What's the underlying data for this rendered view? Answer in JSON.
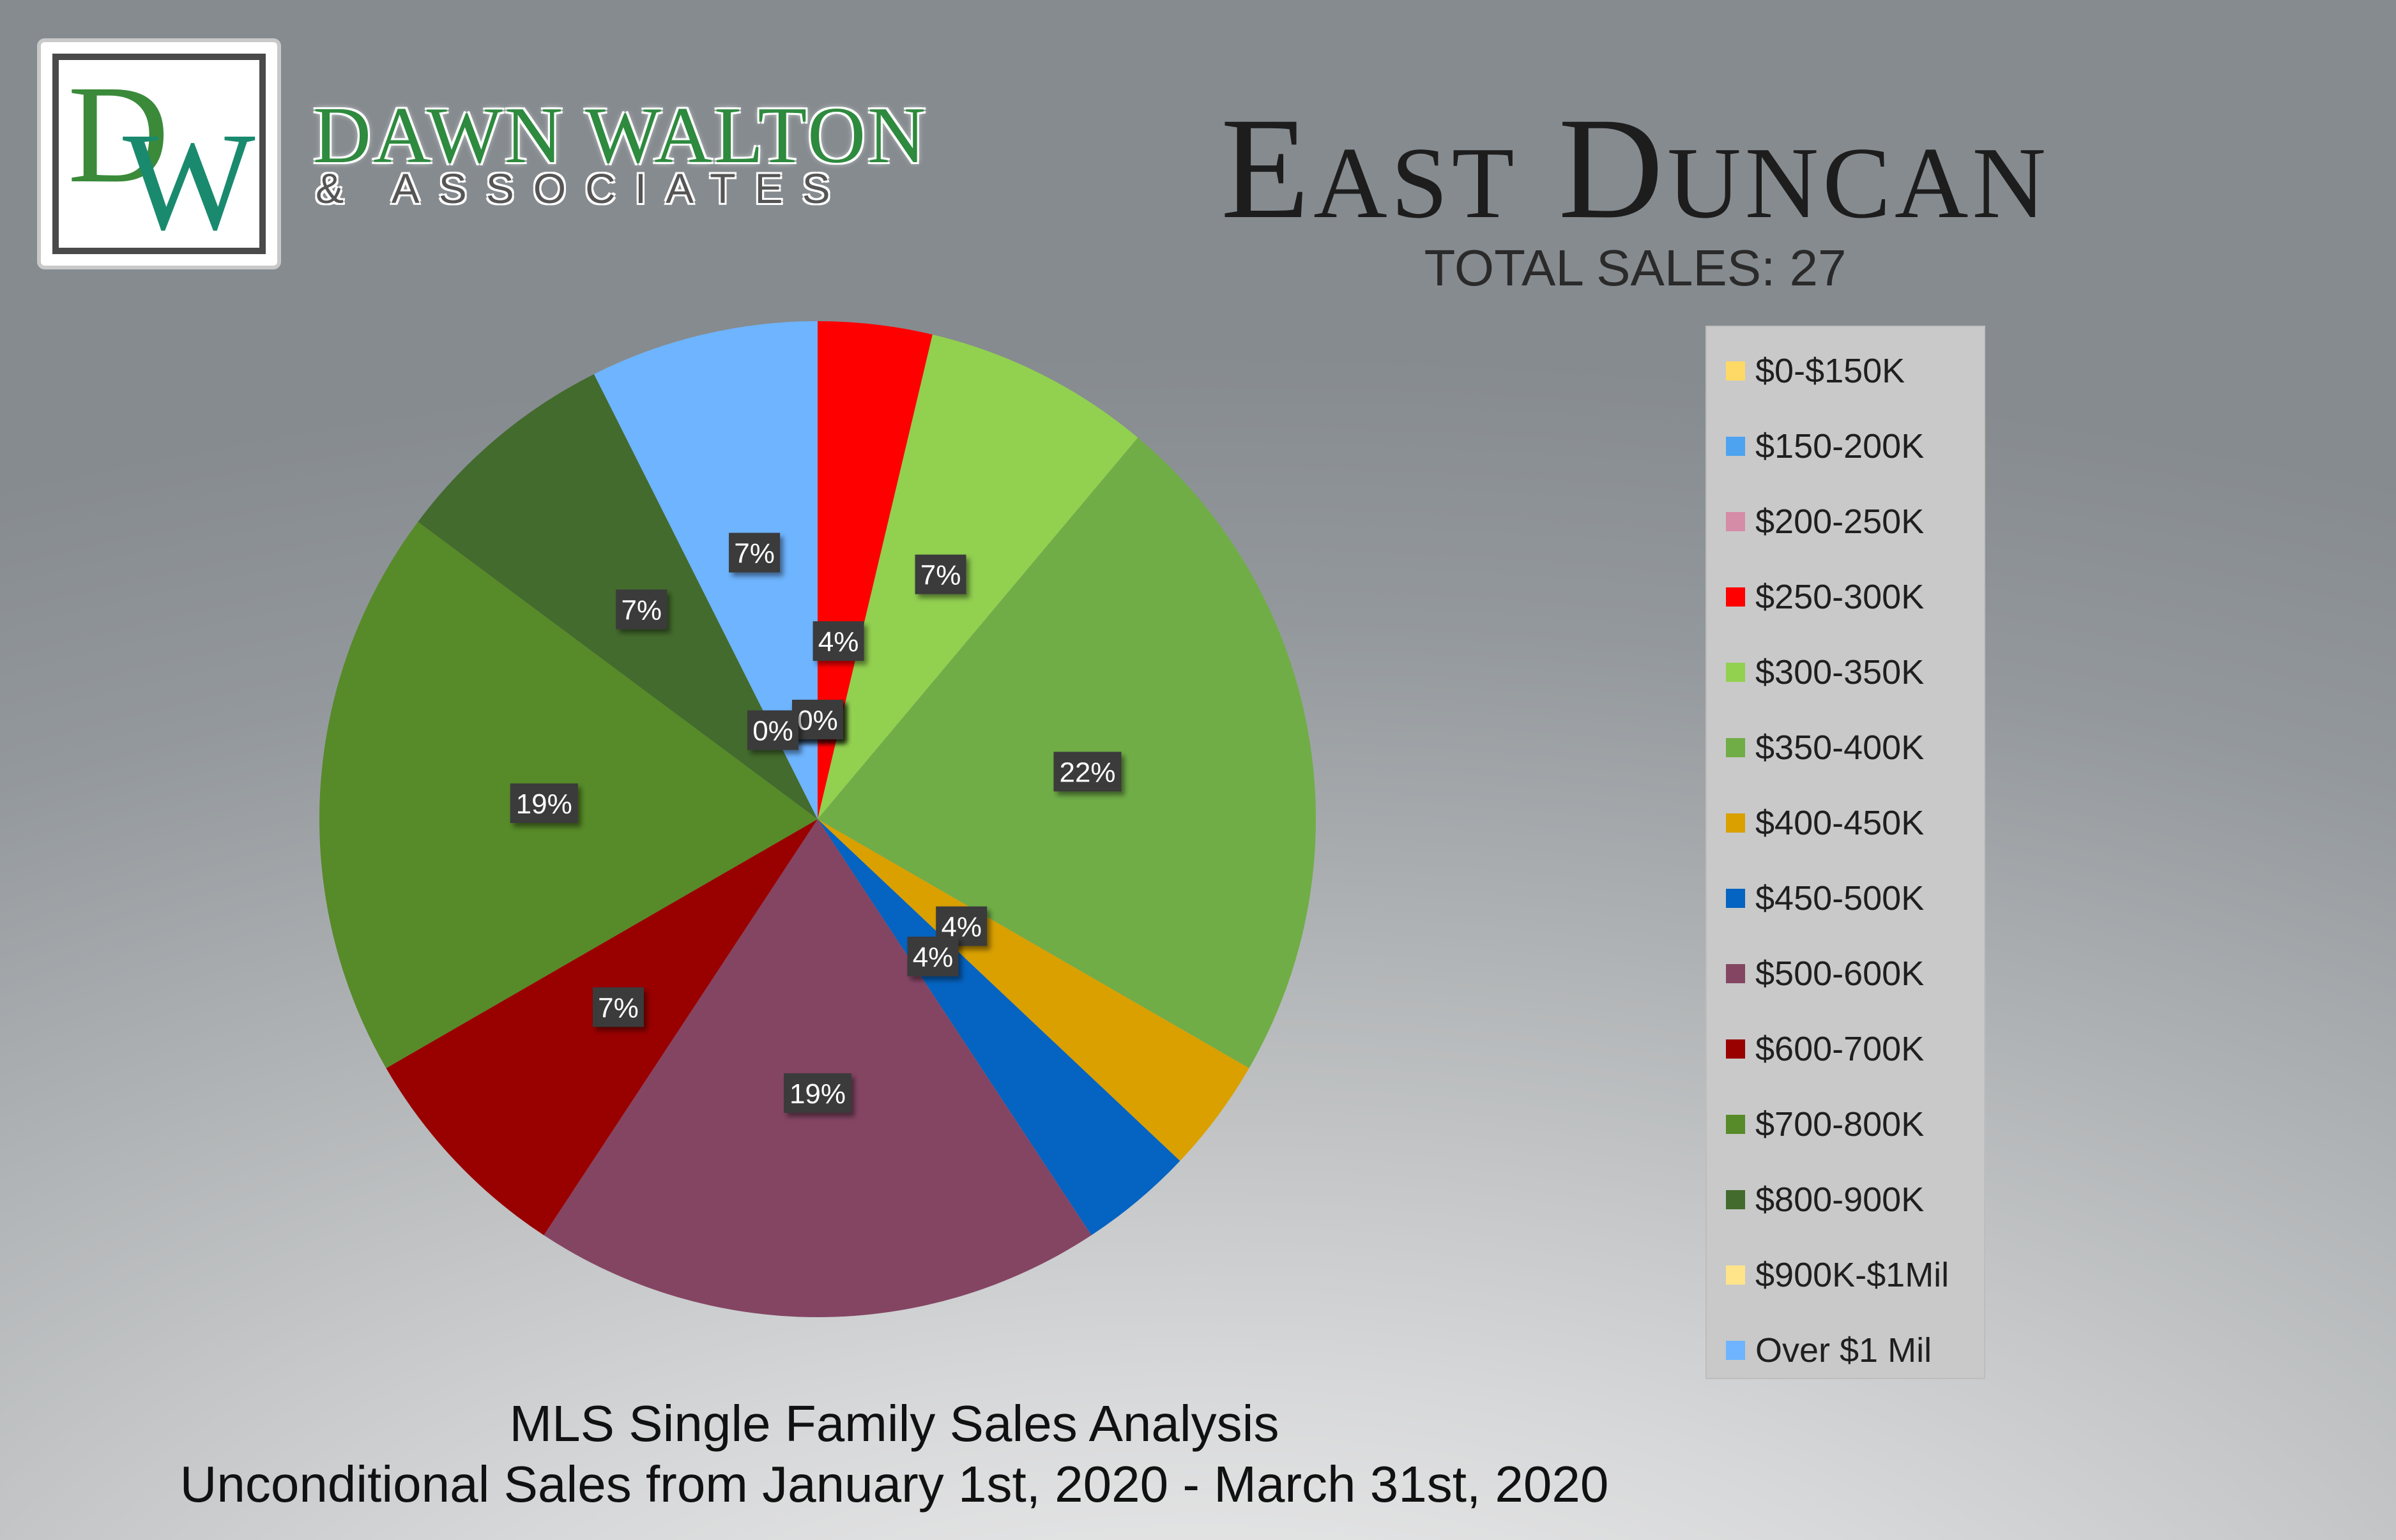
{
  "brand": {
    "monogram_d": "D",
    "monogram_w": "W",
    "name": "DAWN WALTON",
    "sub": "& ASSOCIATES",
    "colors": {
      "green": "#3a8a3a",
      "teal": "#1a8a6e"
    }
  },
  "footer": {
    "line1": "MLS Single Family Sales Analysis",
    "line2": "Unconditional Sales from January 1st, 2020 - March 31st, 2020"
  },
  "chart_data": {
    "type": "pie",
    "title": "East Duncan",
    "subtitle": "TOTAL SALES: 27",
    "legend_position": "right",
    "categories": [
      "$0-$150K",
      "$150-200K",
      "$200-250K",
      "$250-300K",
      "$300-350K",
      "$350-400K",
      "$400-450K",
      "$450-500K",
      "$500-600K",
      "$600-700K",
      "$700-800K",
      "$800-900K",
      "$900K-$1Mil",
      "Over $1 Mil"
    ],
    "values": [
      0,
      0,
      0,
      1,
      2,
      6,
      1,
      1,
      5,
      2,
      5,
      2,
      0,
      2
    ],
    "percent_labels": [
      "0%",
      "0%",
      "0%",
      "4%",
      "7%",
      "22%",
      "4%",
      "4%",
      "19%",
      "7%",
      "19%",
      "7%",
      "0%",
      "7%"
    ],
    "colors": [
      "#ffd966",
      "#4da3f0",
      "#d58ca6",
      "#ff0000",
      "#92d050",
      "#70ad47",
      "#d9a000",
      "#0563c1",
      "#844563",
      "#990000",
      "#578a28",
      "#436b2d",
      "#ffe48a",
      "#6eb4ff"
    ]
  }
}
